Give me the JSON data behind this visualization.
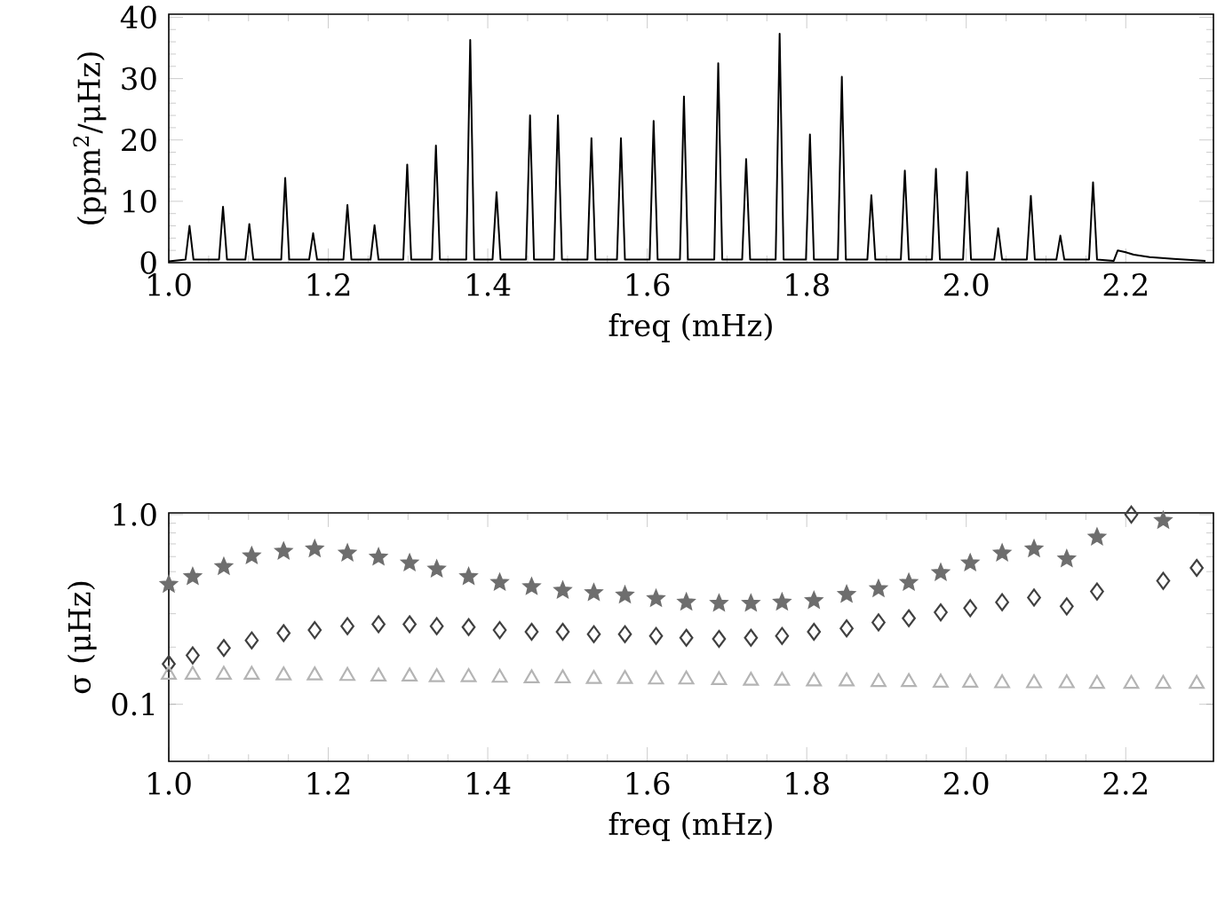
{
  "chart_data": [
    {
      "type": "line",
      "color": "#000000",
      "marker": "none",
      "xlabel": "freq (mHz)",
      "ylabel": "(ppm$^{2}$/μHz)",
      "xlim": [
        1.0,
        2.31
      ],
      "ylim": [
        0,
        40.5
      ],
      "xticks": [
        {
          "value": 1.0,
          "label": "1.0"
        },
        {
          "value": 1.2,
          "label": "1.2"
        },
        {
          "value": 1.4,
          "label": "1.4"
        },
        {
          "value": 1.6,
          "label": "1.6"
        },
        {
          "value": 1.8,
          "label": "1.8"
        },
        {
          "value": 2.0,
          "label": "2.0"
        },
        {
          "value": 2.2,
          "label": "2.2"
        }
      ],
      "yticks": [
        0,
        10,
        20,
        30,
        40
      ],
      "x": [
        1.0,
        1.021,
        1.026,
        1.031,
        1.063,
        1.068,
        1.073,
        1.096,
        1.101,
        1.106,
        1.141,
        1.146,
        1.151,
        1.176,
        1.181,
        1.186,
        1.219,
        1.224,
        1.229,
        1.253,
        1.258,
        1.263,
        1.294,
        1.299,
        1.304,
        1.33,
        1.335,
        1.34,
        1.373,
        1.378,
        1.383,
        1.406,
        1.411,
        1.416,
        1.448,
        1.453,
        1.458,
        1.483,
        1.488,
        1.493,
        1.525,
        1.53,
        1.535,
        1.562,
        1.567,
        1.572,
        1.603,
        1.608,
        1.613,
        1.641,
        1.646,
        1.651,
        1.684,
        1.689,
        1.694,
        1.719,
        1.724,
        1.729,
        1.761,
        1.766,
        1.771,
        1.799,
        1.804,
        1.809,
        1.839,
        1.844,
        1.849,
        1.876,
        1.881,
        1.886,
        1.918,
        1.923,
        1.928,
        1.957,
        1.962,
        1.967,
        1.996,
        2.001,
        2.006,
        2.035,
        2.04,
        2.045,
        2.076,
        2.081,
        2.086,
        2.113,
        2.118,
        2.123,
        2.154,
        2.159,
        2.164,
        2.185,
        2.19,
        2.2,
        2.21,
        2.23,
        2.26,
        2.3
      ],
      "values": [
        0.2,
        0.5,
        6.0,
        0.5,
        0.5,
        9.1,
        0.5,
        0.5,
        6.3,
        0.5,
        0.5,
        13.8,
        0.5,
        0.5,
        4.8,
        0.5,
        0.5,
        9.4,
        0.5,
        0.5,
        6.1,
        0.5,
        0.5,
        16.0,
        0.5,
        0.5,
        19.1,
        0.5,
        0.5,
        36.3,
        0.5,
        0.5,
        11.5,
        0.5,
        0.5,
        24.0,
        0.5,
        0.5,
        24.0,
        0.5,
        0.5,
        20.3,
        0.5,
        0.5,
        20.3,
        0.5,
        0.5,
        23.1,
        0.5,
        0.5,
        27.1,
        0.5,
        0.5,
        32.5,
        0.5,
        0.5,
        16.9,
        0.5,
        0.5,
        37.3,
        0.5,
        0.5,
        20.9,
        0.5,
        0.5,
        30.3,
        0.5,
        0.5,
        11.0,
        0.5,
        0.5,
        15.0,
        0.5,
        0.5,
        15.3,
        0.5,
        0.5,
        14.8,
        0.5,
        0.5,
        5.6,
        0.5,
        0.5,
        10.9,
        0.5,
        0.5,
        4.4,
        0.5,
        0.5,
        13.1,
        0.5,
        0.3,
        2.0,
        1.7,
        1.3,
        0.9,
        0.6,
        0.3
      ]
    },
    {
      "type": "scatter",
      "log": "y",
      "xlabel": "freq (mHz)",
      "ylabel": "σ (μHz)",
      "xlim": [
        1.0,
        2.31
      ],
      "ylim": [
        0.05,
        1.02
      ],
      "xticks": [
        {
          "value": 1.0,
          "label": "1.0"
        },
        {
          "value": 1.2,
          "label": "1.2"
        },
        {
          "value": 1.4,
          "label": "1.4"
        },
        {
          "value": 1.6,
          "label": "1.6"
        },
        {
          "value": 1.8,
          "label": "1.8"
        },
        {
          "value": 2.0,
          "label": "2.0"
        },
        {
          "value": 2.2,
          "label": "2.2"
        }
      ],
      "yticks": [
        {
          "value": 0.1,
          "label": "0.1"
        },
        {
          "value": 1.0,
          "label": "1.0"
        }
      ],
      "x": [
        1.0,
        1.03,
        1.069,
        1.104,
        1.144,
        1.183,
        1.224,
        1.263,
        1.302,
        1.336,
        1.376,
        1.415,
        1.455,
        1.494,
        1.533,
        1.572,
        1.611,
        1.649,
        1.69,
        1.73,
        1.769,
        1.809,
        1.85,
        1.89,
        1.928,
        1.968,
        2.005,
        2.045,
        2.085,
        2.126,
        2.164,
        2.207,
        2.247,
        2.289
      ],
      "series": [
        {
          "color": "#6e6e6e",
          "marker": "star",
          "values": [
            0.428,
            0.47,
            0.531,
            0.605,
            0.64,
            0.659,
            0.626,
            0.596,
            0.555,
            0.515,
            0.47,
            0.438,
            0.416,
            0.398,
            0.387,
            0.376,
            0.36,
            0.345,
            0.34,
            0.34,
            0.345,
            0.352,
            0.379,
            0.406,
            0.438,
            0.494,
            0.555,
            0.626,
            0.659,
            0.583,
            0.76,
            null,
            0.93,
            null
          ]
        },
        {
          "color": "#404040",
          "marker": "diamond",
          "values": [
            0.163,
            0.181,
            0.198,
            0.217,
            0.237,
            0.246,
            0.258,
            0.264,
            0.264,
            0.258,
            0.255,
            0.246,
            0.241,
            0.241,
            0.234,
            0.234,
            0.229,
            0.224,
            0.221,
            0.224,
            0.229,
            0.241,
            0.251,
            0.27,
            0.284,
            0.305,
            0.321,
            0.345,
            0.365,
            0.328,
            0.393,
            1.0,
            0.447,
            0.523
          ]
        },
        {
          "color": "#b4b4b4",
          "marker": "triangle",
          "values": [
            0.143,
            0.143,
            0.143,
            0.143,
            0.142,
            0.142,
            0.141,
            0.14,
            0.14,
            0.139,
            0.139,
            0.138,
            0.137,
            0.137,
            0.136,
            0.136,
            0.135,
            0.135,
            0.134,
            0.133,
            0.133,
            0.132,
            0.132,
            0.131,
            0.131,
            0.13,
            0.13,
            0.129,
            0.129,
            0.129,
            0.128,
            0.128,
            0.128,
            0.128
          ]
        }
      ]
    }
  ]
}
